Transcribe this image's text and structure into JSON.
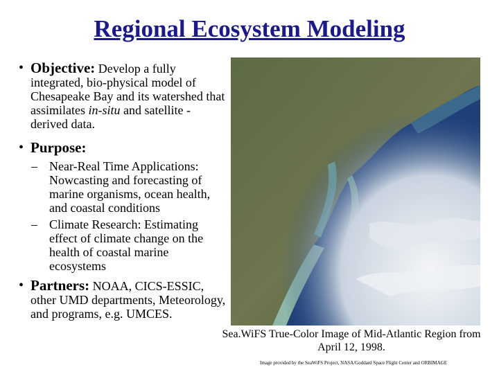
{
  "header": {
    "title": "Regional Ecosystem Modeling"
  },
  "bullets": [
    {
      "label": "Objective:",
      "text": [
        "Develop a fully integrated, bio-physical model of Chesapeake Bay and its watershed that assimilates ",
        "in-situ",
        " and satellite -derived data."
      ]
    },
    {
      "label": "Purpose:",
      "items": [
        "Near-Real Time Applications: Nowcasting and forecasting of marine organisms, ocean health, and coastal conditions",
        "Climate Research: Estimating effect of climate change on the health of coastal marine ecosystems"
      ]
    },
    {
      "label": "Partners:",
      "text": [
        "NOAA, CICS-ESSIC, other UMD departments, Meteorology, and programs, e.g. UMCES."
      ]
    }
  ],
  "figure": {
    "caption": "Sea.WiFS True-Color Image of Mid-Atlantic Region from April 12, 1998.",
    "credit": "Image provided by the SeaWiFS Project, NASA/Goddard Space Flight Center and ORBIMAGE"
  }
}
